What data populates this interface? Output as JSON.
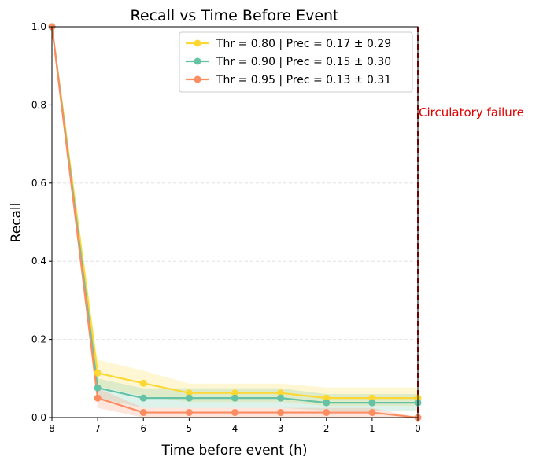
{
  "chart_data": {
    "type": "line",
    "title": "Recall vs Time Before Event",
    "xlabel": "Time before event (h)",
    "ylabel": "Recall",
    "x": [
      8,
      7,
      6,
      5,
      4,
      3,
      2,
      1,
      0
    ],
    "x_ticks": [
      "8",
      "7",
      "6",
      "5",
      "4",
      "3",
      "2",
      "1",
      "0"
    ],
    "y_ticks": [
      "0.0",
      "0.2",
      "0.4",
      "0.6",
      "0.8",
      "1.0"
    ],
    "xlim": [
      8,
      0
    ],
    "ylim": [
      0,
      1
    ],
    "grid": "y-dashed",
    "legend_position": "top-right",
    "series": [
      {
        "name": "Thr = 0.80 | Prec = 0.17 ± 0.29",
        "color": "#fdd835",
        "values": [
          1.0,
          0.114,
          0.088,
          0.063,
          0.063,
          0.063,
          0.05,
          0.05,
          0.05
        ],
        "band_low": [
          1.0,
          0.08,
          0.055,
          0.04,
          0.04,
          0.04,
          0.03,
          0.03,
          0.03
        ],
        "band_high": [
          1.0,
          0.148,
          0.12,
          0.087,
          0.087,
          0.087,
          0.077,
          0.077,
          0.077
        ]
      },
      {
        "name": "Thr = 0.90 | Prec = 0.15 ± 0.30",
        "color": "#66c2a5",
        "values": [
          1.0,
          0.076,
          0.05,
          0.05,
          0.05,
          0.05,
          0.038,
          0.038,
          0.038
        ],
        "band_low": [
          1.0,
          0.05,
          0.025,
          0.025,
          0.025,
          0.025,
          0.018,
          0.018,
          0.018
        ],
        "band_high": [
          1.0,
          0.1,
          0.075,
          0.075,
          0.075,
          0.075,
          0.06,
          0.06,
          0.06
        ]
      },
      {
        "name": "Thr = 0.95 | Prec = 0.13 ± 0.31",
        "color": "#fc8d62",
        "values": [
          1.0,
          0.05,
          0.013,
          0.013,
          0.013,
          0.013,
          0.013,
          0.013,
          0.0
        ],
        "band_low": [
          1.0,
          0.025,
          0.0,
          0.0,
          0.0,
          0.0,
          0.0,
          0.0,
          0.0
        ],
        "band_high": [
          1.0,
          0.075,
          0.025,
          0.025,
          0.025,
          0.025,
          0.025,
          0.025,
          0.0
        ]
      }
    ],
    "event_line": {
      "x": 0,
      "label": "Circulatory failure",
      "color": "#e00000"
    }
  }
}
